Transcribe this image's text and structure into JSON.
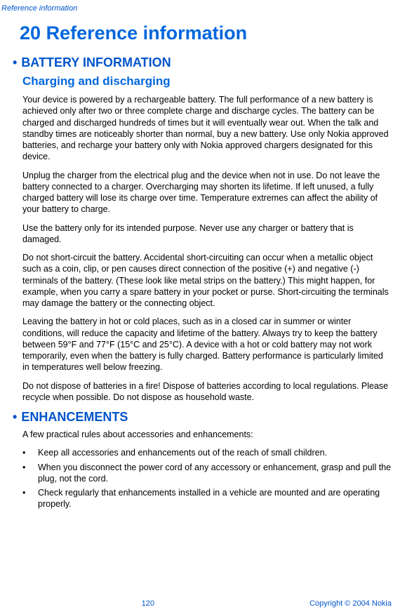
{
  "header": {
    "text": "Reference information"
  },
  "chapter": {
    "number": "20",
    "title": "Reference information"
  },
  "sections": [
    {
      "bullet": "•",
      "heading": "BATTERY INFORMATION",
      "subheadings": [
        {
          "title": "Charging and discharging",
          "paragraphs": [
            "Your device is powered by a rechargeable battery. The full performance of a new battery is achieved only after two or three complete charge and discharge cycles. The battery can be charged and discharged hundreds of times but it will eventually wear out. When the talk and standby times are noticeably shorter than normal, buy a new battery. Use only Nokia approved batteries, and recharge your battery only with Nokia approved chargers designated for this device.",
            "Unplug the charger from the electrical plug and the device when not in use. Do not leave the battery connected to a charger. Overcharging may shorten its lifetime. If left unused, a fully charged battery will lose its charge over time. Temperature extremes can affect the ability of your battery to charge.",
            "Use the battery only for its intended purpose. Never use any charger or battery that is damaged.",
            "Do not short-circuit the battery. Accidental short-circuiting can occur when a metallic object such as a coin, clip, or pen causes direct connection of the positive (+) and negative (-) terminals of the battery. (These look like metal strips on the battery.) This might happen, for example, when you carry a spare battery in your pocket or purse. Short-circuiting the terminals may damage the battery or the connecting object.",
            "Leaving the battery in hot or cold places, such as in a closed car in summer or winter conditions, will reduce the capacity and lifetime of the battery. Always try to keep the battery between 59°F and 77°F (15°C and 25°C). A device with a hot or cold battery may not work temporarily, even when the battery is fully charged. Battery performance is particularly limited in temperatures well below freezing.",
            "Do not dispose of batteries in a fire! Dispose of batteries according to local regulations. Please recycle when possible. Do not dispose as household waste."
          ]
        }
      ]
    },
    {
      "bullet": "•",
      "heading": "ENHANCEMENTS",
      "intro": "A few practical rules about accessories and enhancements:",
      "bullets": [
        "Keep all accessories and enhancements out of the reach of small children.",
        "When you disconnect the power cord of any accessory or enhancement, grasp and pull the plug, not the cord.",
        "Check regularly that enhancements installed in a vehicle are mounted and are operating properly."
      ]
    }
  ],
  "footer": {
    "page": "120",
    "copyright": "Copyright © 2004 Nokia"
  }
}
